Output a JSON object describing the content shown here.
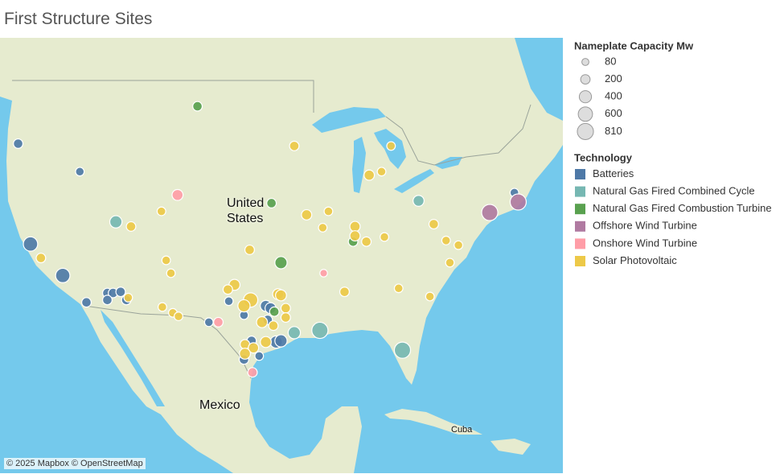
{
  "chart_data": {
    "type": "map",
    "title": "First Structure Sites",
    "map_labels": [
      "United States",
      "Mexico",
      "Cuba"
    ],
    "attribution": "© 2025 Mapbox © OpenStreetMap",
    "size_legend": {
      "title": "Nameplate Capacity Mw",
      "values": [
        80,
        200,
        400,
        600,
        810
      ]
    },
    "color_legend_title": "Technology",
    "series": [
      {
        "name": "Batteries",
        "color": "#4e79a7",
        "lon": [
          -122.3,
          -115.8,
          -121.0,
          -117.6,
          -115.1,
          -112.9,
          -112.3,
          -111.5,
          -112.9,
          -110.9,
          -100.1,
          -98.5,
          -96.2,
          -95.7,
          -96.0,
          -102.2,
          -97.7,
          -95.1,
          -94.6,
          -98.5,
          -96.9,
          -70.0
        ],
        "lat": [
          46.8,
          44.4,
          38.2,
          35.5,
          33.2,
          34.0,
          34.0,
          34.1,
          33.4,
          33.4,
          33.3,
          32.1,
          32.9,
          32.7,
          31.7,
          31.5,
          29.9,
          29.8,
          29.9,
          28.3,
          28.6,
          42.6
        ],
        "capacity": [
          200,
          150,
          600,
          600,
          200,
          200,
          200,
          200,
          200,
          200,
          150,
          150,
          300,
          300,
          200,
          150,
          200,
          400,
          400,
          200,
          150,
          150
        ]
      },
      {
        "name": "Natural Gas Fired Combined Cycle",
        "color": "#76b7b2",
        "lon": [
          -112.0,
          -93.2,
          -90.5,
          -81.8,
          -80.1
        ],
        "lat": [
          40.1,
          30.6,
          30.8,
          29.1,
          41.9
        ],
        "capacity": [
          400,
          400,
          810,
          810,
          300
        ]
      },
      {
        "name": "Natural Gas Fired Combustion Turbine",
        "color": "#59a14f",
        "lon": [
          -103.4,
          -95.6,
          -94.6,
          -87.0,
          -95.3
        ],
        "lat": [
          50.0,
          41.7,
          36.6,
          38.4,
          32.4
        ],
        "capacity": [
          200,
          200,
          400,
          200,
          200
        ]
      },
      {
        "name": "Offshore Wind Turbine",
        "color": "#b07aa1",
        "lon": [
          -72.6,
          -69.6
        ],
        "lat": [
          40.9,
          41.8
        ],
        "capacity": [
          810,
          800
        ]
      },
      {
        "name": "Onshore Wind Turbine",
        "color": "#ff9da7",
        "lon": [
          -105.5,
          -90.1,
          -101.2,
          -97.6
        ],
        "lat": [
          42.4,
          35.7,
          31.5,
          27.2
        ],
        "capacity": [
          300,
          100,
          200,
          200
        ]
      },
      {
        "name": "Solar Photovoltaic",
        "color": "#edc948",
        "lon": [
          -93.2,
          -83.0,
          -85.3,
          -84.0,
          -107.2,
          -110.4,
          -91.9,
          -89.6,
          -90.2,
          -86.8,
          -86.8,
          -85.6,
          -83.7,
          -78.5,
          -77.2,
          -75.9,
          -76.8,
          -97.9,
          -106.7,
          -106.2,
          -119.9,
          -99.5,
          -100.2,
          -97.8,
          -98.5,
          -94.9,
          -94.6,
          -94.1,
          -96.6,
          -94.1,
          -95.4,
          -98.4,
          -97.5,
          -96.2,
          -98.4,
          -87.9,
          -82.2,
          -78.9,
          -107.1,
          -106.0,
          -105.4,
          -110.7
        ],
        "lat": [
          46.6,
          46.6,
          44.1,
          44.4,
          41.0,
          39.7,
          40.7,
          41.0,
          39.6,
          39.7,
          38.9,
          38.4,
          38.8,
          39.9,
          38.5,
          38.1,
          36.6,
          37.7,
          36.8,
          35.7,
          37.0,
          34.7,
          34.3,
          33.4,
          32.9,
          33.9,
          33.8,
          32.7,
          31.5,
          31.9,
          31.2,
          29.6,
          29.3,
          29.8,
          28.8,
          34.1,
          34.4,
          33.7,
          32.8,
          32.3,
          32.0,
          33.6
        ],
        "capacity": [
          200,
          150,
          250,
          150,
          150,
          200,
          250,
          150,
          150,
          250,
          250,
          200,
          150,
          200,
          150,
          150,
          150,
          200,
          150,
          150,
          200,
          300,
          200,
          600,
          400,
          300,
          300,
          200,
          300,
          200,
          200,
          200,
          250,
          300,
          300,
          200,
          150,
          150,
          150,
          150,
          150,
          150
        ]
      }
    ]
  }
}
